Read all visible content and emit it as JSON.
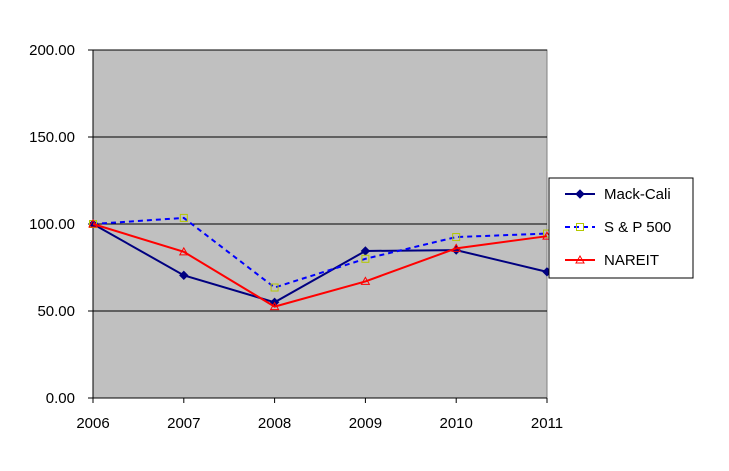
{
  "chart_data": {
    "type": "line",
    "title": "",
    "xlabel": "",
    "ylabel": "",
    "categories": [
      "2006",
      "2007",
      "2008",
      "2009",
      "2010",
      "2011"
    ],
    "ylim": [
      0,
      200
    ],
    "y_ticks": [
      "0.00",
      "50.00",
      "100.00",
      "150.00",
      "200.00"
    ],
    "grid": "horizontal",
    "plot_background": "#C0C0C0",
    "legend_position": "right",
    "series": [
      {
        "name": "Mack-Cali",
        "values": [
          100,
          70.5,
          55,
          84.5,
          85,
          72.5
        ],
        "color": "#000080",
        "dash": "solid",
        "marker": "diamond"
      },
      {
        "name": "S & P 500",
        "values": [
          100,
          103.5,
          63.5,
          80,
          92.5,
          94.5
        ],
        "color": "#0000FF",
        "dash": "dashed",
        "marker": "square"
      },
      {
        "name": "NAREIT",
        "values": [
          100,
          84,
          52.5,
          67,
          86,
          93
        ],
        "color": "#FF0000",
        "dash": "solid",
        "marker": "triangle"
      }
    ]
  }
}
